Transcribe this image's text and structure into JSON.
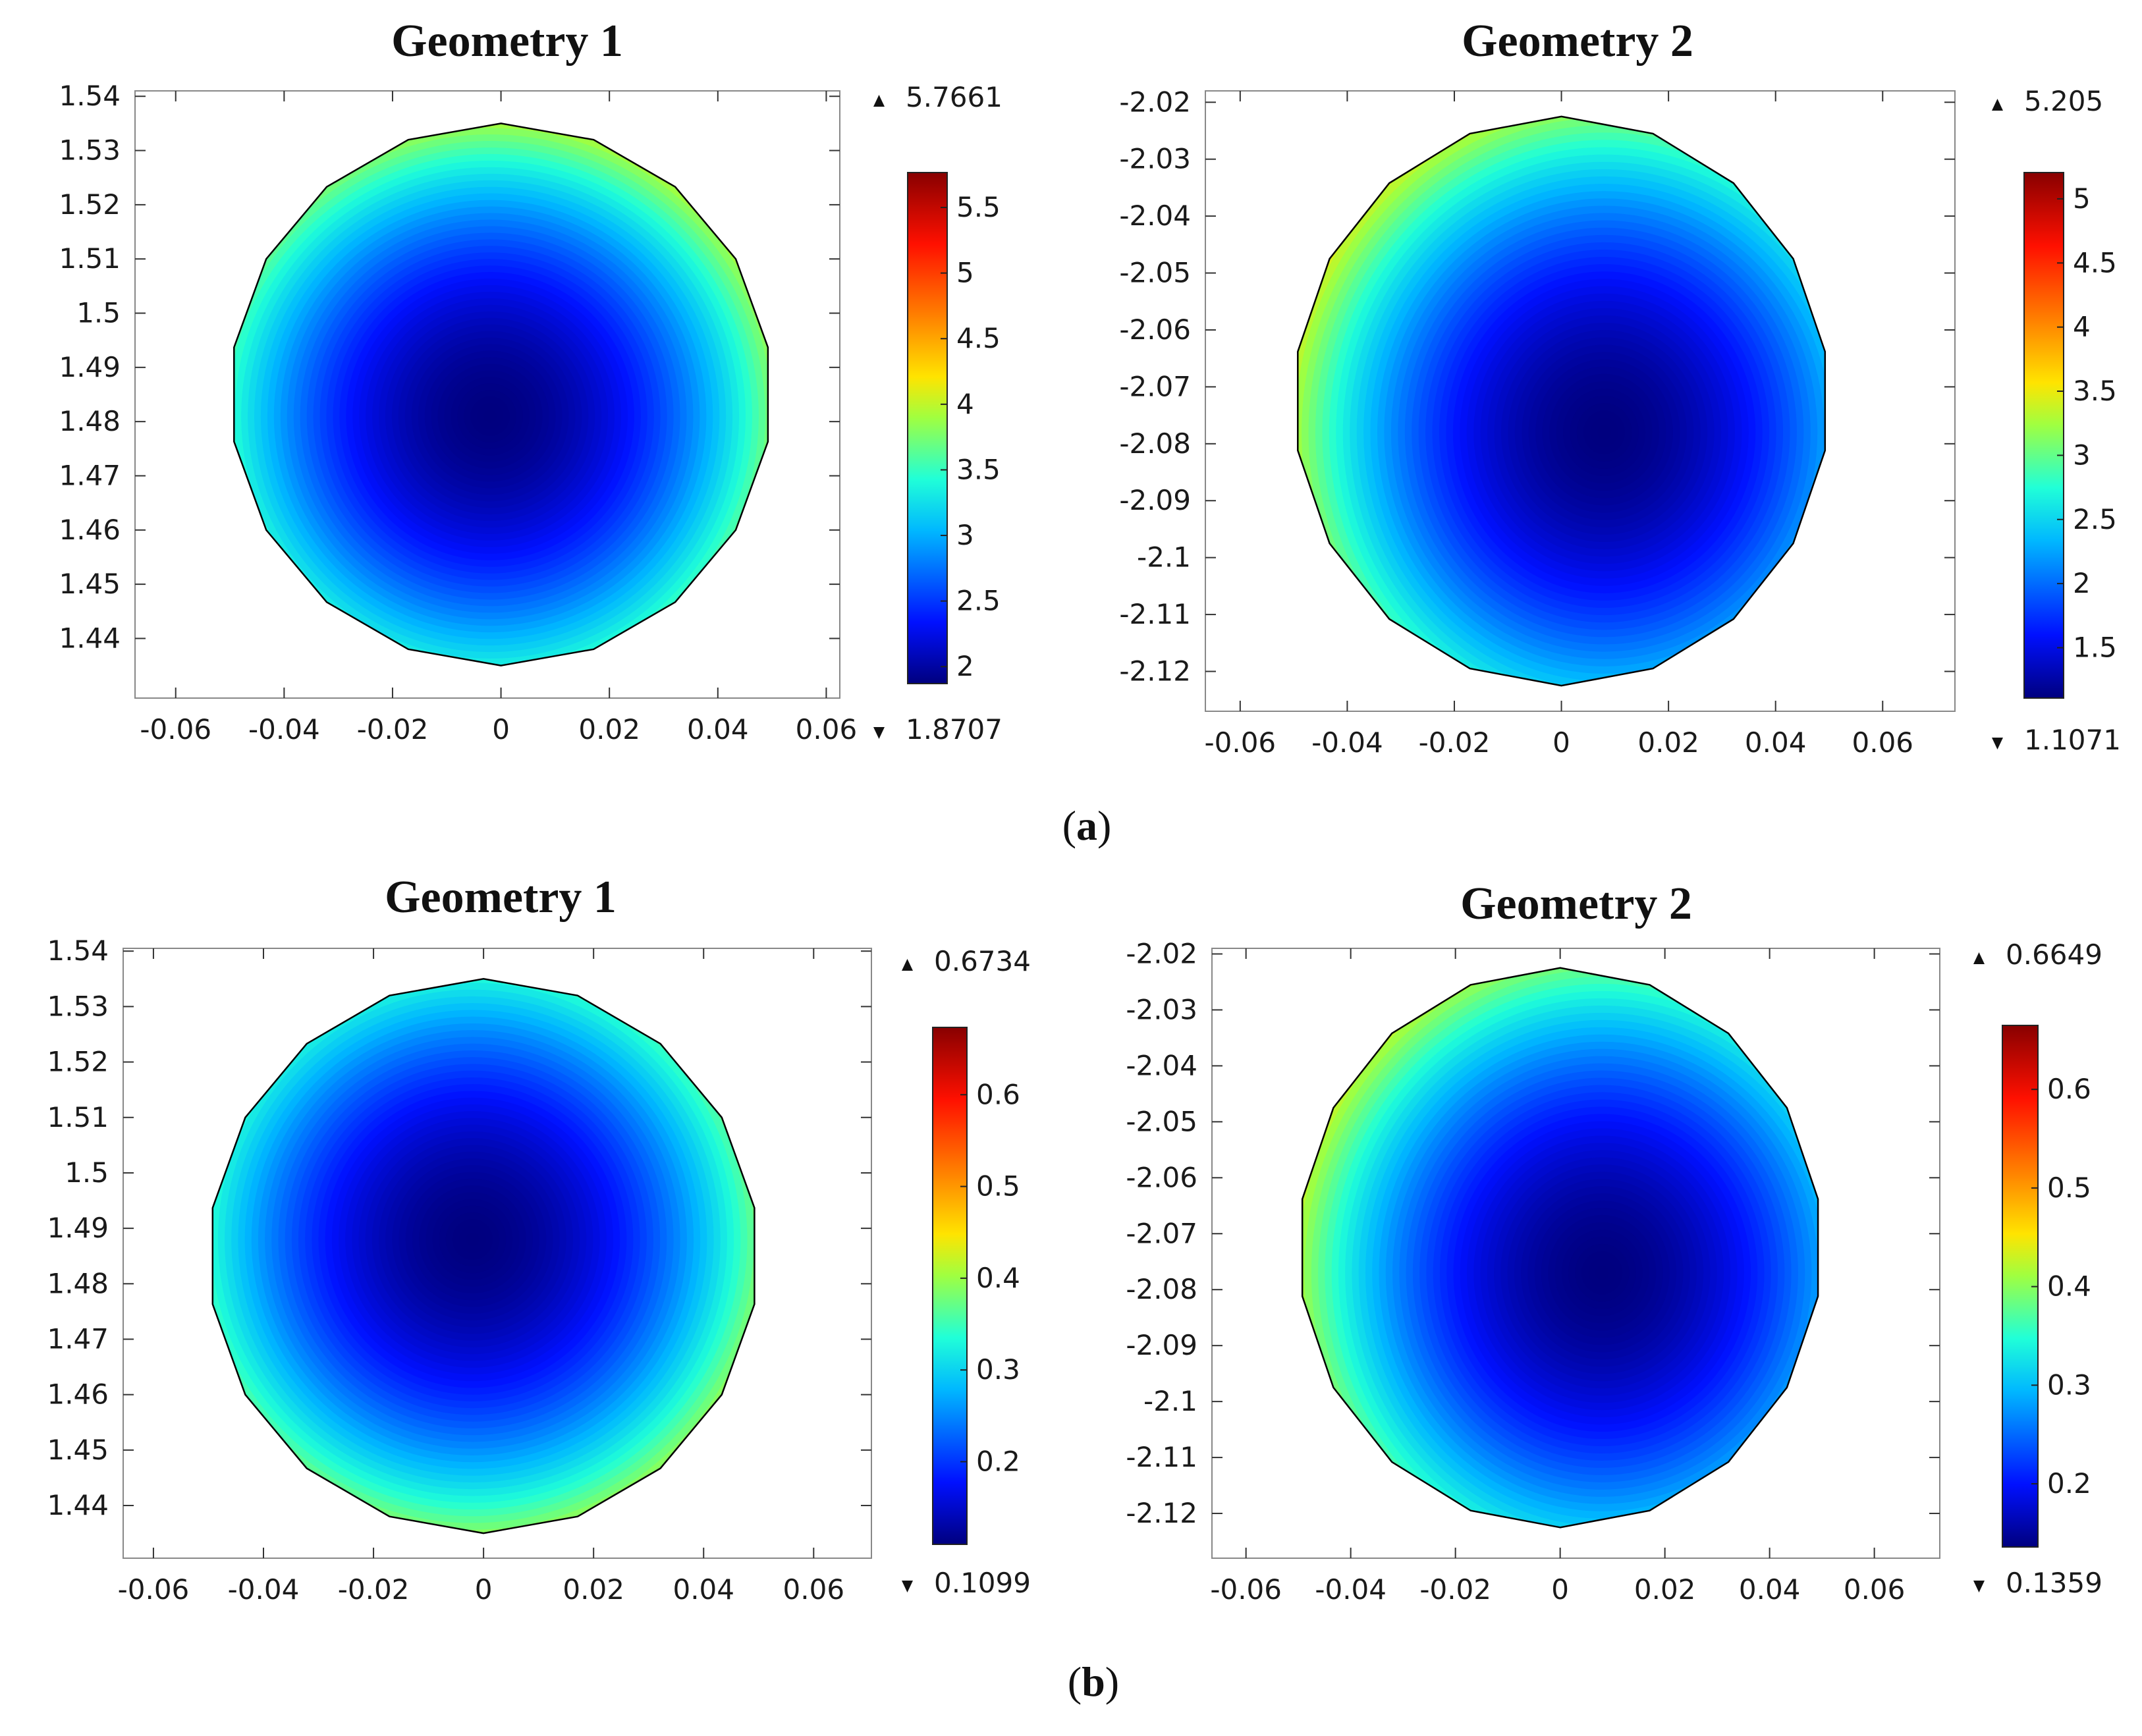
{
  "figure": {
    "caption_a": "a",
    "caption_b": "b"
  },
  "chart_data": [
    {
      "type": "heatmap",
      "panel": "a",
      "title": "Geometry 1",
      "xlabel": "",
      "ylabel": "",
      "xlim": [
        -0.0675,
        0.0625
      ],
      "ylim": [
        1.429,
        1.541
      ],
      "xticks": [
        -0.06,
        -0.04,
        -0.02,
        0,
        0.02,
        0.04,
        0.06
      ],
      "xtick_labels": [
        "-0.06",
        "-0.04",
        "-0.02",
        "0",
        "0.02",
        "0.04",
        "0.06"
      ],
      "yticks": [
        1.54,
        1.53,
        1.52,
        1.51,
        1.5,
        1.49,
        1.48,
        1.47,
        1.46,
        1.45,
        1.44
      ],
      "ytick_labels": [
        "1.54",
        "1.53",
        "1.52",
        "1.51",
        "1.5",
        "1.49",
        "1.48",
        "1.47",
        "1.46",
        "1.45",
        "1.44"
      ],
      "domain": {
        "shape": "circle",
        "center": [
          0,
          1.485
        ],
        "radius": 0.05
      },
      "peak": {
        "x": -0.002,
        "y": 1.481
      },
      "colorbar": {
        "max": 5.7661,
        "min": 1.8707,
        "max_label": "5.7661",
        "min_label": "1.8707",
        "ticks": [
          5.5,
          5,
          4.5,
          4,
          3.5,
          3,
          2.5,
          2
        ],
        "tick_labels": [
          "5.5",
          "5",
          "4.5",
          "4",
          "3.5",
          "3",
          "2.5",
          "2"
        ],
        "colormap": "rainbow"
      }
    },
    {
      "type": "heatmap",
      "panel": "a",
      "title": "Geometry 2",
      "xlabel": "",
      "ylabel": "",
      "xlim": [
        -0.0665,
        0.0735
      ],
      "ylim": [
        -2.127,
        -2.018
      ],
      "xticks": [
        -0.06,
        -0.04,
        -0.02,
        0,
        0.02,
        0.04,
        0.06
      ],
      "xtick_labels": [
        "-0.06",
        "-0.04",
        "-0.02",
        "0",
        "0.02",
        "0.04",
        "0.06"
      ],
      "yticks": [
        -2.02,
        -2.03,
        -2.04,
        -2.05,
        -2.06,
        -2.07,
        -2.08,
        -2.09,
        -2.1,
        -2.11,
        -2.12
      ],
      "ytick_labels": [
        "-2.02",
        "-2.03",
        "-2.04",
        "-2.05",
        "-2.06",
        "-2.07",
        "-2.08",
        "-2.09",
        "-2.1",
        "-2.11",
        "-2.12"
      ],
      "domain": {
        "shape": "circle",
        "center": [
          0,
          -2.0725
        ],
        "radius": 0.05
      },
      "peak": {
        "x": 0.008,
        "y": -2.078
      },
      "colorbar": {
        "max": 5.205,
        "min": 1.1071,
        "max_label": "5.205",
        "min_label": "1.1071",
        "ticks": [
          5,
          4.5,
          4,
          3.5,
          3,
          2.5,
          2,
          1.5
        ],
        "tick_labels": [
          "5",
          "4.5",
          "4",
          "3.5",
          "3",
          "2.5",
          "2",
          "1.5"
        ],
        "colormap": "rainbow"
      }
    },
    {
      "type": "heatmap",
      "panel": "b",
      "title": "Geometry 1",
      "xlabel": "",
      "ylabel": "",
      "xlim": [
        -0.0655,
        0.0705
      ],
      "ylim": [
        1.4305,
        1.5405
      ],
      "xticks": [
        -0.06,
        -0.04,
        -0.02,
        0,
        0.02,
        0.04,
        0.06
      ],
      "xtick_labels": [
        "-0.06",
        "-0.04",
        "-0.02",
        "0",
        "0.02",
        "0.04",
        "0.06"
      ],
      "yticks": [
        1.54,
        1.53,
        1.52,
        1.51,
        1.5,
        1.49,
        1.48,
        1.47,
        1.46,
        1.45,
        1.44
      ],
      "ytick_labels": [
        "1.54",
        "1.53",
        "1.52",
        "1.51",
        "1.5",
        "1.49",
        "1.48",
        "1.47",
        "1.46",
        "1.45",
        "1.44"
      ],
      "domain": {
        "shape": "circle",
        "center": [
          0,
          1.485
        ],
        "radius": 0.05
      },
      "peak": {
        "x": -0.002,
        "y": 1.488
      },
      "colorbar": {
        "max": 0.6734,
        "min": 0.1099,
        "max_label": "0.6734",
        "min_label": "0.1099",
        "ticks": [
          0.6,
          0.5,
          0.4,
          0.3,
          0.2
        ],
        "tick_labels": [
          "0.6",
          "0.5",
          "0.4",
          "0.3",
          "0.2"
        ],
        "colormap": "rainbow"
      }
    },
    {
      "type": "heatmap",
      "panel": "b",
      "title": "Geometry 2",
      "xlabel": "",
      "ylabel": "",
      "xlim": [
        -0.0665,
        0.0725
      ],
      "ylim": [
        -2.128,
        -2.019
      ],
      "xticks": [
        -0.06,
        -0.04,
        -0.02,
        0,
        0.02,
        0.04,
        0.06
      ],
      "xtick_labels": [
        "-0.06",
        "-0.04",
        "-0.02",
        "0",
        "0.02",
        "0.04",
        "0.06"
      ],
      "yticks": [
        -2.02,
        -2.03,
        -2.04,
        -2.05,
        -2.06,
        -2.07,
        -2.08,
        -2.09,
        -2.1,
        -2.11,
        -2.12
      ],
      "ytick_labels": [
        "-2.02",
        "-2.03",
        "-2.04",
        "-2.05",
        "-2.06",
        "-2.07",
        "-2.08",
        "-2.09",
        "-2.1",
        "-2.11",
        "-2.12"
      ],
      "domain": {
        "shape": "circle",
        "center": [
          0,
          -2.0725
        ],
        "radius": 0.05
      },
      "peak": {
        "x": 0.008,
        "y": -2.077
      },
      "colorbar": {
        "max": 0.6649,
        "min": 0.1359,
        "max_label": "0.6649",
        "min_label": "0.1359",
        "ticks": [
          0.6,
          0.5,
          0.4,
          0.3,
          0.2
        ],
        "tick_labels": [
          "0.6",
          "0.5",
          "0.4",
          "0.3",
          "0.2"
        ],
        "colormap": "rainbow"
      }
    }
  ]
}
